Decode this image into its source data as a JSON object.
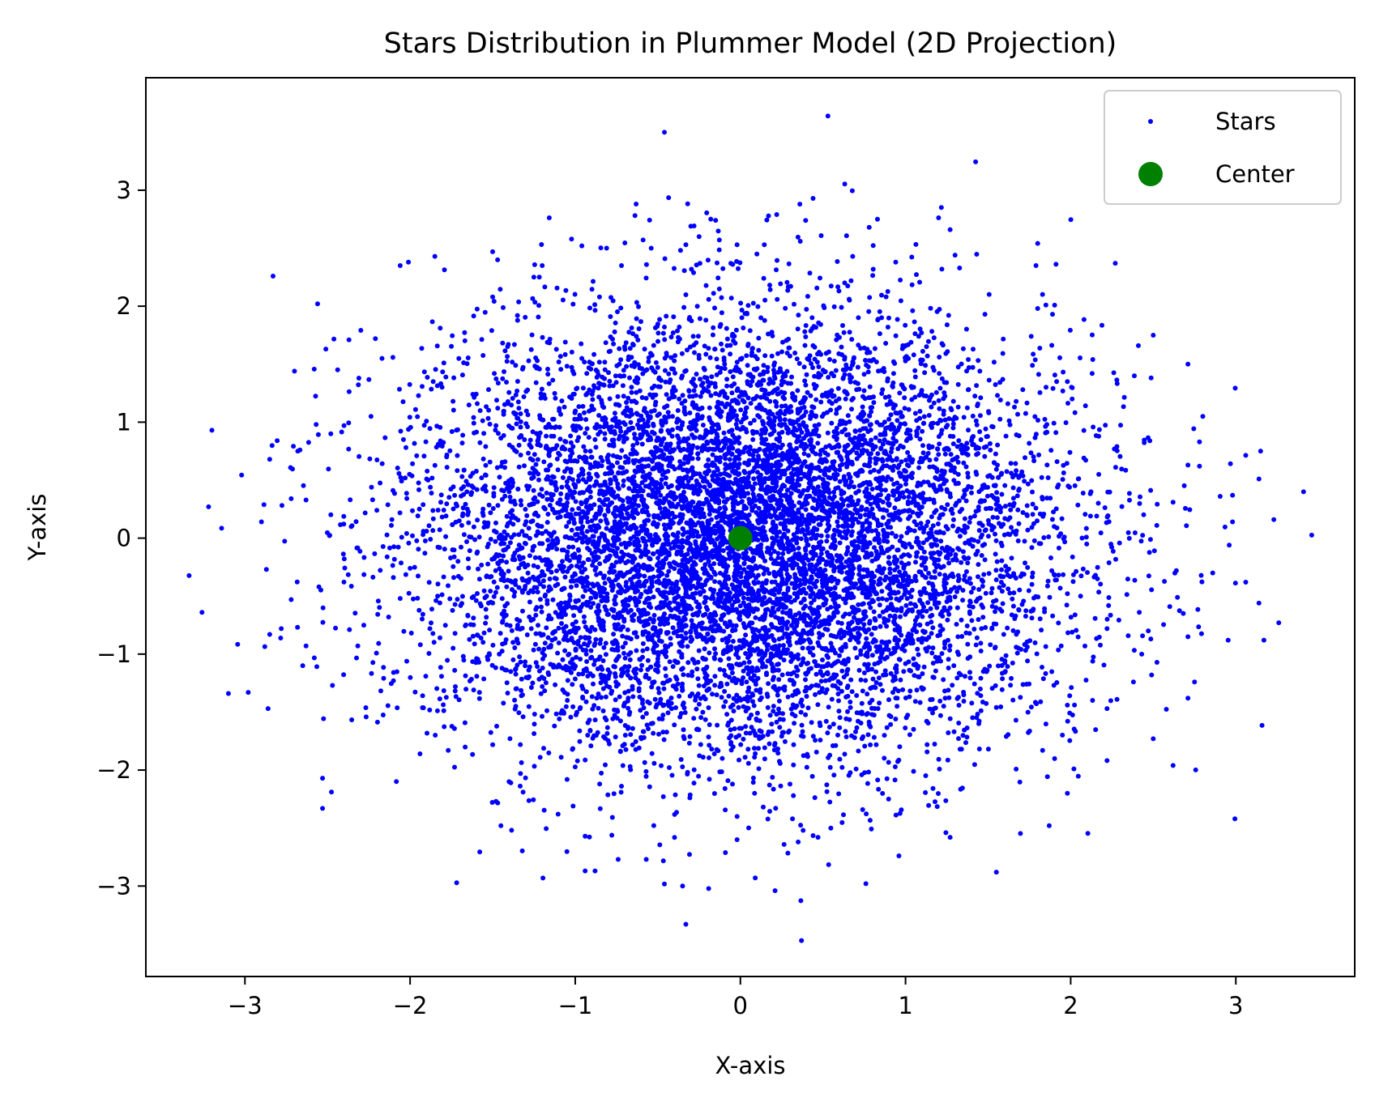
{
  "chart_data": {
    "type": "scatter",
    "title": "Stars Distribution in Plummer Model (2D Projection)",
    "xlabel": "X-axis",
    "ylabel": "Y-axis",
    "xlim": [
      -3.6,
      3.72
    ],
    "ylim": [
      -3.78,
      3.97
    ],
    "xticks": [
      {
        "value": -3,
        "label": "−3"
      },
      {
        "value": -2,
        "label": "−2"
      },
      {
        "value": -1,
        "label": "−1"
      },
      {
        "value": 0,
        "label": "0"
      },
      {
        "value": 1,
        "label": "1"
      },
      {
        "value": 2,
        "label": "2"
      },
      {
        "value": 3,
        "label": "3"
      }
    ],
    "yticks": [
      {
        "value": -3,
        "label": "−3"
      },
      {
        "value": -2,
        "label": "−2"
      },
      {
        "value": -1,
        "label": "−1"
      },
      {
        "value": 0,
        "label": "0"
      },
      {
        "value": 1,
        "label": "1"
      },
      {
        "value": 2,
        "label": "2"
      },
      {
        "value": 3,
        "label": "3"
      }
    ],
    "grid": false,
    "legend_position": "top-right",
    "series": [
      {
        "name": "Stars",
        "color": "#0000ff",
        "marker": "circle-small",
        "description_count_visible": "approx. 10000 points, isotropic Plummer-like distribution, dense core near origin",
        "points": [
          [
            0.53,
            3.64
          ],
          [
            -0.46,
            3.5
          ],
          [
            0.44,
            2.93
          ],
          [
            0.36,
            2.88
          ],
          [
            0.22,
            2.79
          ],
          [
            -0.15,
            2.74
          ],
          [
            0.83,
            2.75
          ],
          [
            0.78,
            2.68
          ],
          [
            1.27,
            2.66
          ],
          [
            -0.25,
            2.6
          ],
          [
            -0.33,
            2.53
          ],
          [
            -0.96,
            2.52
          ],
          [
            -0.81,
            2.5
          ],
          [
            -0.54,
            2.5
          ],
          [
            -0.02,
            2.53
          ],
          [
            1.3,
            2.44
          ],
          [
            1.79,
            2.35
          ],
          [
            2.27,
            2.37
          ],
          [
            -1.85,
            2.43
          ],
          [
            -2.01,
            2.38
          ],
          [
            -2.06,
            2.35
          ],
          [
            -1.5,
            2.47
          ],
          [
            -1.47,
            2.4
          ],
          [
            -1.2,
            2.35
          ],
          [
            -0.72,
            2.35
          ],
          [
            0.1,
            2.45
          ],
          [
            0.68,
            2.43
          ],
          [
            1.22,
            2.32
          ],
          [
            -2.56,
            2.02
          ],
          [
            -1.5,
            2.08
          ],
          [
            -1.35,
            1.92
          ],
          [
            1.85,
            2.01
          ],
          [
            1.8,
            1.98
          ],
          [
            1.89,
            1.93
          ],
          [
            -2.37,
            1.71
          ],
          [
            -2.51,
            1.63
          ],
          [
            -2.21,
            1.72
          ],
          [
            -2.17,
            1.55
          ],
          [
            -2.7,
            1.44
          ],
          [
            -2.31,
            1.38
          ],
          [
            2.5,
            1.75
          ],
          [
            2.41,
            1.66
          ],
          [
            2.71,
            1.5
          ],
          [
            2.13,
            1.42
          ],
          [
            -3.2,
            0.93
          ],
          [
            -2.85,
            0.68
          ],
          [
            -2.68,
            0.75
          ],
          [
            -2.72,
            0.34
          ],
          [
            -3.22,
            0.27
          ],
          [
            -2.9,
            0.14
          ],
          [
            -2.48,
            0.9
          ],
          [
            -2.4,
            0.97
          ],
          [
            2.8,
            1.05
          ],
          [
            2.78,
            0.83
          ],
          [
            2.78,
            0.62
          ],
          [
            2.71,
            0.63
          ],
          [
            3.15,
            0.75
          ],
          [
            3.14,
            0.51
          ],
          [
            3.41,
            0.4
          ],
          [
            2.62,
            0.31
          ],
          [
            2.98,
            0.37
          ],
          [
            2.98,
            0.14
          ],
          [
            3.23,
            0.16
          ],
          [
            2.96,
            -0.06
          ],
          [
            2.64,
            -0.28
          ],
          [
            2.86,
            -0.3
          ],
          [
            3.06,
            -0.38
          ],
          [
            2.6,
            -0.59
          ],
          [
            3.14,
            -0.56
          ],
          [
            3.26,
            -0.73
          ],
          [
            3.17,
            -0.88
          ],
          [
            2.71,
            -0.85
          ],
          [
            2.47,
            -0.8
          ],
          [
            -3.26,
            -0.64
          ],
          [
            -2.87,
            -0.27
          ],
          [
            -2.72,
            -0.53
          ],
          [
            -2.85,
            -0.83
          ],
          [
            -2.78,
            -0.78
          ],
          [
            -2.63,
            -0.93
          ],
          [
            -2.65,
            -1.1
          ],
          [
            -3.1,
            -1.34
          ],
          [
            -2.98,
            -1.33
          ],
          [
            -2.86,
            -1.47
          ],
          [
            -2.47,
            -1.27
          ],
          [
            -2.53,
            -2.07
          ],
          [
            -2.53,
            -2.33
          ],
          [
            2.43,
            -1.0
          ],
          [
            2.38,
            -1.24
          ],
          [
            2.49,
            -1.18
          ],
          [
            2.75,
            -1.24
          ],
          [
            2.71,
            -1.38
          ],
          [
            2.22,
            -1.47
          ],
          [
            1.98,
            -1.44
          ],
          [
            1.98,
            -2.2
          ],
          [
            1.87,
            -2.48
          ],
          [
            2.5,
            -1.73
          ],
          [
            2.62,
            -1.96
          ],
          [
            1.27,
            -2.58
          ],
          [
            0.96,
            -2.74
          ],
          [
            0.76,
            -2.98
          ],
          [
            1.55,
            -2.88
          ],
          [
            -0.33,
            -3.33
          ],
          [
            0.37,
            -3.47
          ],
          [
            0.21,
            -3.04
          ],
          [
            0.09,
            -2.93
          ],
          [
            -0.35,
            -3.0
          ],
          [
            -0.88,
            -2.87
          ],
          [
            -0.94,
            -2.87
          ],
          [
            -0.74,
            -2.77
          ],
          [
            -0.57,
            -2.77
          ],
          [
            -0.94,
            -2.57
          ],
          [
            -0.02,
            -2.6
          ],
          [
            0.47,
            -2.58
          ],
          [
            0.35,
            -2.62
          ],
          [
            0.38,
            -2.52
          ],
          [
            -1.94,
            -1.86
          ],
          [
            -1.48,
            -2.27
          ],
          [
            -1.39,
            -2.11
          ],
          [
            1.83,
            -1.83
          ],
          [
            1.61,
            -1.71
          ],
          [
            -0.46,
            1.82
          ],
          [
            -0.37,
            1.82
          ],
          [
            -0.63,
            1.74
          ],
          [
            0.39,
            1.78
          ],
          [
            0.44,
            1.66
          ],
          [
            0.88,
            1.68
          ],
          [
            1.08,
            1.74
          ],
          [
            1.05,
            1.58
          ],
          [
            -1.06,
            1.69
          ],
          [
            -0.96,
            1.55
          ],
          [
            -1.23,
            1.53
          ],
          [
            1.38,
            1.54
          ],
          [
            1.45,
            1.44
          ],
          [
            1.71,
            1.28
          ],
          [
            1.98,
            1.35
          ],
          [
            -1.62,
            1.24
          ],
          [
            -1.74,
            1.18
          ],
          [
            -1.86,
            1.35
          ],
          [
            -1.49,
            1.42
          ],
          [
            -0.25,
            1.55
          ],
          [
            0.07,
            1.6
          ],
          [
            -1.96,
            0.71
          ],
          [
            -2.04,
            0.85
          ],
          [
            -1.9,
            0.51
          ],
          [
            -1.66,
            0.49
          ],
          [
            2.08,
            0.69
          ],
          [
            2.28,
            0.79
          ],
          [
            1.92,
            0.44
          ],
          [
            2.17,
            0.55
          ],
          [
            2.06,
            -0.5
          ],
          [
            2.22,
            -0.78
          ],
          [
            2.15,
            -0.32
          ],
          [
            1.88,
            -0.17
          ],
          [
            1.9,
            0.1
          ],
          [
            2.12,
            0.19
          ],
          [
            -2.06,
            -0.52
          ],
          [
            -2.13,
            -0.68
          ],
          [
            -1.88,
            -0.78
          ],
          [
            -1.77,
            -0.41
          ],
          [
            -2.0,
            -0.26
          ],
          [
            -1.9,
            0.06
          ],
          [
            -2.11,
            0.16
          ],
          [
            -1.73,
            -1.14
          ],
          [
            -1.58,
            -1.33
          ],
          [
            -1.36,
            -1.45
          ],
          [
            -1.07,
            -1.5
          ],
          [
            -0.6,
            -1.73
          ],
          [
            -0.24,
            -1.78
          ],
          [
            0.21,
            -1.77
          ],
          [
            0.56,
            -1.79
          ],
          [
            0.94,
            -1.56
          ],
          [
            1.24,
            -1.38
          ],
          [
            1.48,
            -1.13
          ],
          [
            1.67,
            -0.94
          ],
          [
            1.64,
            -1.21
          ],
          [
            1.76,
            -0.63
          ],
          [
            1.77,
            -0.3
          ],
          [
            1.74,
            0.07
          ],
          [
            1.64,
            0.56
          ],
          [
            1.53,
            0.96
          ],
          [
            1.29,
            1.18
          ],
          [
            1.06,
            1.39
          ],
          [
            0.68,
            1.52
          ],
          [
            0.3,
            1.57
          ],
          [
            -0.08,
            1.66
          ],
          [
            -0.58,
            1.63
          ],
          [
            -0.93,
            1.42
          ],
          [
            -1.2,
            1.22
          ],
          [
            -1.48,
            0.97
          ],
          [
            -1.62,
            0.56
          ],
          [
            -1.68,
            0.21
          ],
          [
            -1.71,
            -0.2
          ],
          [
            -1.65,
            -0.67
          ],
          [
            -1.46,
            -1.0
          ],
          [
            -1.2,
            -1.28
          ],
          [
            -0.83,
            -1.49
          ],
          [
            -0.4,
            -1.61
          ],
          [
            0.08,
            -1.66
          ],
          [
            0.52,
            -1.58
          ],
          [
            0.95,
            -1.38
          ],
          [
            1.26,
            -1.12
          ],
          [
            1.46,
            -0.78
          ],
          [
            1.58,
            -0.38
          ],
          [
            1.58,
            0.1
          ],
          [
            1.43,
            0.55
          ],
          [
            1.22,
            0.93
          ],
          [
            0.9,
            1.22
          ],
          [
            0.47,
            1.39
          ],
          [
            0.0,
            1.43
          ],
          [
            -0.48,
            1.36
          ],
          [
            -0.9,
            1.14
          ],
          [
            -1.22,
            0.81
          ],
          [
            -1.4,
            0.4
          ],
          [
            -1.45,
            -0.05
          ],
          [
            -1.37,
            -0.5
          ],
          [
            -1.14,
            -0.88
          ],
          [
            -0.79,
            -1.16
          ],
          [
            -0.35,
            -1.31
          ],
          [
            0.12,
            -1.33
          ],
          [
            0.56,
            -1.21
          ],
          [
            0.93,
            -0.95
          ],
          [
            1.19,
            -0.6
          ],
          [
            1.31,
            -0.19
          ],
          [
            1.28,
            0.25
          ],
          [
            1.1,
            0.66
          ],
          [
            0.79,
            0.98
          ],
          [
            0.38,
            1.17
          ],
          [
            -0.08,
            1.21
          ],
          [
            -0.52,
            1.1
          ],
          [
            -0.88,
            0.85
          ],
          [
            -1.12,
            0.48
          ],
          [
            -1.2,
            0.04
          ],
          [
            -1.12,
            -0.41
          ],
          [
            -0.88,
            -0.79
          ],
          [
            -0.5,
            -1.04
          ],
          [
            -0.05,
            -1.12
          ],
          [
            0.38,
            -1.04
          ],
          [
            0.76,
            -0.81
          ],
          [
            1.0,
            -0.45
          ],
          [
            1.07,
            0.0
          ],
          [
            0.97,
            0.45
          ],
          [
            0.72,
            0.81
          ],
          [
            0.35,
            1.02
          ],
          [
            -0.07,
            1.07
          ],
          [
            -0.48,
            0.93
          ],
          [
            -0.78,
            0.63
          ],
          [
            -0.92,
            0.24
          ],
          [
            -0.89,
            -0.2
          ],
          [
            -0.68,
            -0.58
          ],
          [
            -0.33,
            -0.82
          ],
          [
            0.08,
            -0.87
          ],
          [
            0.46,
            -0.72
          ],
          [
            0.73,
            -0.43
          ],
          [
            0.84,
            -0.04
          ],
          [
            0.76,
            0.36
          ],
          [
            0.5,
            0.67
          ],
          [
            0.13,
            0.82
          ],
          [
            -0.26,
            0.78
          ],
          [
            -0.57,
            0.54
          ],
          [
            -0.72,
            0.18
          ],
          [
            -0.68,
            -0.2
          ],
          [
            -0.45,
            -0.51
          ],
          [
            -0.1,
            -0.66
          ],
          [
            0.27,
            -0.6
          ],
          [
            0.54,
            -0.35
          ],
          [
            0.64,
            0.0
          ],
          [
            0.54,
            0.35
          ],
          [
            0.27,
            0.58
          ],
          [
            -0.08,
            0.62
          ],
          [
            -0.38,
            0.44
          ],
          [
            -0.5,
            0.12
          ],
          [
            -0.43,
            -0.22
          ],
          [
            -0.18,
            -0.44
          ],
          [
            0.14,
            -0.46
          ],
          [
            0.38,
            -0.26
          ],
          [
            0.44,
            0.06
          ],
          [
            0.3,
            0.34
          ],
          [
            0.02,
            0.44
          ],
          [
            -0.24,
            0.3
          ],
          [
            -0.3,
            0.02
          ],
          [
            -0.16,
            -0.22
          ],
          [
            0.1,
            -0.26
          ],
          [
            0.24,
            -0.04
          ],
          [
            0.14,
            0.18
          ],
          [
            -0.06,
            0.16
          ]
        ]
      },
      {
        "name": "Center",
        "color": "#008000",
        "marker": "circle-large",
        "points": [
          [
            0,
            0
          ]
        ]
      }
    ]
  },
  "legend": {
    "items": [
      {
        "label": "Stars",
        "color": "#0000ff"
      },
      {
        "label": "Center",
        "color": "#008000"
      }
    ]
  }
}
